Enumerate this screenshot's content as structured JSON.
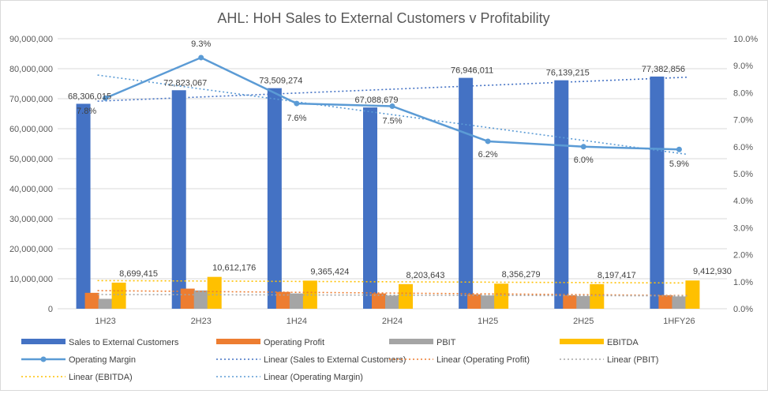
{
  "chart_data": {
    "type": "bar",
    "title": "AHL: HoH Sales to External Customers v Profitability",
    "categories": [
      "1H23",
      "2H23",
      "1H24",
      "2H24",
      "1H25",
      "2H25",
      "1HFY26"
    ],
    "ylim": [
      0,
      90000000
    ],
    "y2lim": [
      0,
      0.1
    ],
    "y_ticks": [
      "0",
      "10,000,000",
      "20,000,000",
      "30,000,000",
      "40,000,000",
      "50,000,000",
      "60,000,000",
      "70,000,000",
      "80,000,000",
      "90,000,000"
    ],
    "y2_ticks": [
      "0.0%",
      "1.0%",
      "2.0%",
      "3.0%",
      "4.0%",
      "5.0%",
      "6.0%",
      "7.0%",
      "8.0%",
      "9.0%",
      "10.0%"
    ],
    "series": [
      {
        "name": "Sales to External Customers",
        "color": "#4472C4",
        "values": [
          68306015,
          72823067,
          73509274,
          67088679,
          76946011,
          76139215,
          77382856
        ],
        "labels": [
          "68,306,015",
          "72,823,067",
          "73,509,274",
          "67,088,679",
          "76,946,011",
          "76,139,215",
          "77,382,856"
        ]
      },
      {
        "name": "Operating Profit",
        "color": "#ED7D31",
        "values": [
          5300000,
          6700000,
          5600000,
          5100000,
          4800000,
          4500000,
          4500000
        ]
      },
      {
        "name": "PBIT",
        "color": "#A5A5A5",
        "values": [
          3300000,
          6100000,
          5100000,
          4400000,
          4400000,
          4200000,
          4100000
        ]
      },
      {
        "name": "EBITDA",
        "color": "#FFC000",
        "values": [
          8699415,
          10612176,
          9365424,
          8203643,
          8356279,
          8197417,
          9412930
        ],
        "labels": [
          "8,699,415",
          "10,612,176",
          "9,365,424",
          "8,203,643",
          "8,356,279",
          "8,197,417",
          "9,412,930"
        ]
      },
      {
        "name": "Operating Margin",
        "color": "#5B9BD5",
        "axis": "secondary",
        "values": [
          0.078,
          0.093,
          0.076,
          0.075,
          0.062,
          0.06,
          0.059
        ],
        "labels": [
          "7.8%",
          "9.3%",
          "7.6%",
          "7.5%",
          "6.2%",
          "6.0%",
          "5.9%"
        ]
      }
    ],
    "trendlines": [
      {
        "name": "Linear (Sales to External Customers)",
        "color": "#4472C4",
        "of": "Sales to External Customers"
      },
      {
        "name": "Linear (Operating Profit)",
        "color": "#ED7D31",
        "of": "Operating Profit"
      },
      {
        "name": "Linear (PBIT)",
        "color": "#A5A5A5",
        "of": "PBIT"
      },
      {
        "name": "Linear (EBITDA)",
        "color": "#FFC000",
        "of": "EBITDA"
      },
      {
        "name": "Linear (Operating Margin)",
        "color": "#5B9BD5",
        "of": "Operating Margin"
      }
    ],
    "legend_position": "bottom",
    "grid": true
  }
}
